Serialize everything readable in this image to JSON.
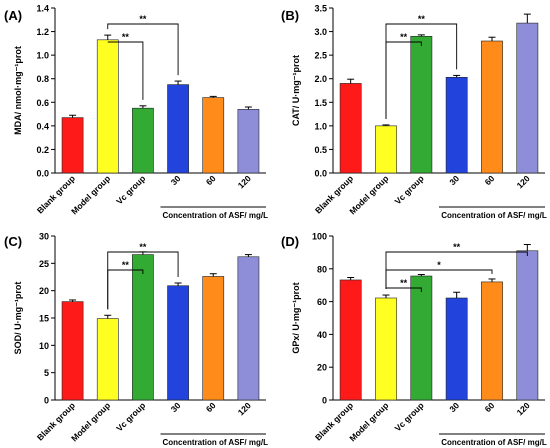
{
  "chart_data": [
    {
      "type": "bar",
      "panel_label": "(A)",
      "categories": [
        "Blank group",
        "Model group",
        "Vc group",
        "30",
        "60",
        "120"
      ],
      "values": [
        0.47,
        1.13,
        0.55,
        0.75,
        0.64,
        0.54
      ],
      "errors": [
        0.02,
        0.04,
        0.02,
        0.03,
        0.01,
        0.02
      ],
      "colors": [
        "#ff1a1a",
        "#ffff22",
        "#33aa33",
        "#2244dd",
        "#ff8c1a",
        "#8e8ed8"
      ],
      "ylabel": "MDA/ nmol·mg⁻¹prot",
      "ylim": [
        0,
        1.4
      ],
      "yticks": [
        "0.0",
        "0.2",
        "0.4",
        "0.6",
        "0.8",
        "1.0",
        "1.2",
        "1.4"
      ],
      "group_label": "Concentration of ASF/ mg/L",
      "significance": [
        {
          "from": 1,
          "to": 2,
          "label": "**"
        },
        {
          "from": 1,
          "to": 3,
          "label": "**"
        }
      ]
    },
    {
      "type": "bar",
      "panel_label": "(B)",
      "categories": [
        "Blank group",
        "Model group",
        "Vc group",
        "30",
        "60",
        "120"
      ],
      "values": [
        1.9,
        1.0,
        2.9,
        2.03,
        2.8,
        3.18
      ],
      "errors": [
        0.09,
        0.02,
        0.03,
        0.04,
        0.08,
        0.19
      ],
      "colors": [
        "#ff1a1a",
        "#ffff22",
        "#33aa33",
        "#2244dd",
        "#ff8c1a",
        "#8e8ed8"
      ],
      "ylabel": "CAT/ U·mg⁻¹prot",
      "ylim": [
        0,
        3.5
      ],
      "yticks": [
        "0.0",
        "0.5",
        "1.0",
        "1.5",
        "2.0",
        "2.5",
        "3.0",
        "3.5"
      ],
      "group_label": "Concentration of ASF/ mg/L",
      "significance": [
        {
          "from": 1,
          "to": 2,
          "label": "**"
        },
        {
          "from": 1,
          "to": 3,
          "label": "**"
        }
      ]
    },
    {
      "type": "bar",
      "panel_label": "(C)",
      "categories": [
        "Blank group",
        "Model group",
        "Vc group",
        "30",
        "60",
        "120"
      ],
      "values": [
        18.0,
        14.9,
        26.6,
        20.9,
        22.6,
        26.2
      ],
      "errors": [
        0.3,
        0.6,
        0.5,
        0.5,
        0.5,
        0.4
      ],
      "colors": [
        "#ff1a1a",
        "#ffff22",
        "#33aa33",
        "#2244dd",
        "#ff8c1a",
        "#8e8ed8"
      ],
      "ylabel": "SOD/ U·mg⁻¹prot",
      "ylim": [
        0,
        30
      ],
      "yticks": [
        "0",
        "5",
        "10",
        "15",
        "20",
        "25",
        "30"
      ],
      "group_label": "Concentration of ASF/ mg/L",
      "significance": [
        {
          "from": 1,
          "to": 2,
          "label": "**"
        },
        {
          "from": 1,
          "to": 3,
          "label": "**"
        }
      ]
    },
    {
      "type": "bar",
      "panel_label": "(D)",
      "categories": [
        "Blank group",
        "Model group",
        "Vc group",
        "30",
        "60",
        "120"
      ],
      "values": [
        73.2,
        62.2,
        75.6,
        62.2,
        72.0,
        91.0
      ],
      "errors": [
        1.5,
        1.8,
        0.9,
        3.5,
        1.8,
        3.8
      ],
      "colors": [
        "#ff1a1a",
        "#ffff22",
        "#33aa33",
        "#2244dd",
        "#ff8c1a",
        "#8e8ed8"
      ],
      "ylabel": "GPx/ U·mg⁻¹prot",
      "ylim": [
        0,
        100
      ],
      "yticks": [
        "0",
        "20",
        "40",
        "60",
        "80",
        "100"
      ],
      "group_label": "Concentration of ASF/ mg/L",
      "significance": [
        {
          "from": 1,
          "to": 2,
          "label": "**"
        },
        {
          "from": 1,
          "to": 4,
          "label": "*"
        },
        {
          "from": 1,
          "to": 5,
          "label": "**"
        }
      ]
    }
  ]
}
